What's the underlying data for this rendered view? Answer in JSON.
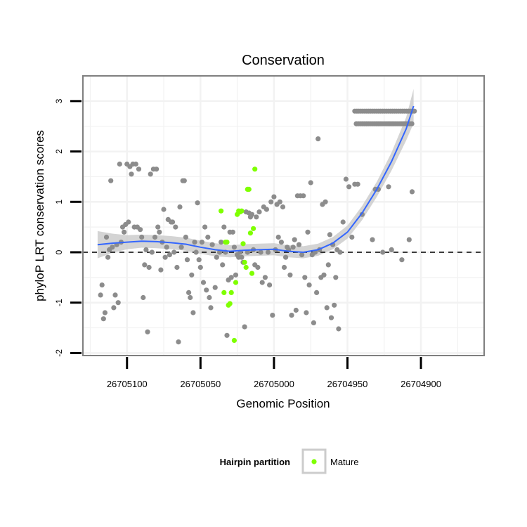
{
  "chart_data": {
    "type": "scatter",
    "title": "Conservation",
    "xlabel": "Genomic Position",
    "ylabel": "phyloP LRT conservation scores",
    "x_reversed": true,
    "xlim": [
      26705130,
      26704857
    ],
    "ylim": [
      -2.05,
      3.5
    ],
    "x_ticks": [
      26705100,
      26705050,
      26705000,
      26704950,
      26704900
    ],
    "x_tick_labels": [
      "26705100",
      "26705050",
      "26705000",
      "26704950",
      "26704900"
    ],
    "y_ticks": [
      -2,
      -1,
      0,
      1,
      2,
      3
    ],
    "y_tick_labels": [
      "-2",
      "-1",
      "0",
      "1",
      "2",
      "3"
    ],
    "grid": true,
    "reference_line": {
      "y": 0,
      "style": "dashed"
    },
    "legend": {
      "title": "Hairpin partition",
      "placement": "bottom",
      "entries": [
        {
          "label": "Mature",
          "color": "#7FFF00"
        }
      ]
    },
    "colors": {
      "other": "#8c8c8c",
      "mature": "#7FFF00",
      "smooth": "#3366FF",
      "band": "#cccccc",
      "panel_border": "#7f7f7f",
      "grid": "#f2f2f2"
    },
    "series": [
      {
        "group": "other",
        "points": [
          [
            26705118,
            -0.85
          ],
          [
            26705117,
            -0.65
          ],
          [
            26705116,
            -1.32
          ],
          [
            26705115,
            -1.2
          ],
          [
            26705114,
            0.3
          ],
          [
            26705113,
            -0.1
          ],
          [
            26705112,
            0.05
          ],
          [
            26705111,
            1.42
          ],
          [
            26705110,
            0.1
          ],
          [
            26705109,
            -1.1
          ],
          [
            26705108,
            -0.85
          ],
          [
            26705107,
            0.15
          ],
          [
            26705106,
            -1.0
          ],
          [
            26705105,
            1.75
          ],
          [
            26705104,
            0.2
          ],
          [
            26705103,
            0.5
          ],
          [
            26705102,
            0.4
          ],
          [
            26705101,
            0.55
          ],
          [
            26705100,
            1.75
          ],
          [
            26705099,
            0.6
          ],
          [
            26705098,
            1.7
          ],
          [
            26705097,
            1.55
          ],
          [
            26705096,
            1.75
          ],
          [
            26705095,
            0.5
          ],
          [
            26705094,
            1.75
          ],
          [
            26705093,
            0.5
          ],
          [
            26705092,
            1.65
          ],
          [
            26705091,
            0.45
          ],
          [
            26705090,
            0.3
          ],
          [
            26705089,
            -0.9
          ],
          [
            26705088,
            -0.25
          ],
          [
            26705087,
            0.05
          ],
          [
            26705086,
            -1.58
          ],
          [
            26705085,
            -0.3
          ],
          [
            26705084,
            1.55
          ],
          [
            26705083,
            0.0
          ],
          [
            26705082,
            1.65
          ],
          [
            26705081,
            0.3
          ],
          [
            26705080,
            1.65
          ],
          [
            26705079,
            0.5
          ],
          [
            26705078,
            0.4
          ],
          [
            26705077,
            -0.35
          ],
          [
            26705076,
            0.2
          ],
          [
            26705075,
            0.85
          ],
          [
            26705074,
            -0.1
          ],
          [
            26705073,
            0.1
          ],
          [
            26705072,
            0.65
          ],
          [
            26705071,
            -0.05
          ],
          [
            26705070,
            0.6
          ],
          [
            26705069,
            0.6
          ],
          [
            26705068,
            0.0
          ],
          [
            26705067,
            0.5
          ],
          [
            26705066,
            -0.3
          ],
          [
            26705065,
            -1.78
          ],
          [
            26705064,
            0.9
          ],
          [
            26705063,
            0.1
          ],
          [
            26705062,
            1.42
          ],
          [
            26705061,
            1.42
          ],
          [
            26705060,
            0.3
          ],
          [
            26705059,
            -0.15
          ],
          [
            26705058,
            -0.8
          ],
          [
            26705057,
            -0.9
          ],
          [
            26705056,
            -0.45
          ],
          [
            26705055,
            -1.2
          ],
          [
            26705054,
            0.2
          ],
          [
            26705053,
            0.0
          ],
          [
            26705052,
            0.98
          ],
          [
            26705051,
            -0.15
          ],
          [
            26705050,
            -0.3
          ],
          [
            26705049,
            0.2
          ],
          [
            26705048,
            -0.6
          ],
          [
            26705047,
            0.5
          ],
          [
            26705046,
            -0.75
          ],
          [
            26705045,
            0.3
          ],
          [
            26705044,
            -0.9
          ],
          [
            26705043,
            -1.1
          ],
          [
            26705042,
            0.15
          ],
          [
            26705040,
            -0.7
          ],
          [
            26705039,
            -0.1
          ],
          [
            26705037,
            0.0
          ],
          [
            26705036,
            0.2
          ],
          [
            26705035,
            -0.25
          ],
          [
            26705034,
            0.5
          ],
          [
            26705033,
            0.0
          ],
          [
            26705032,
            -1.65
          ],
          [
            26705031,
            -0.55
          ],
          [
            26705030,
            0.4
          ],
          [
            26705029,
            -0.5
          ],
          [
            26705028,
            0.4
          ],
          [
            26705027,
            0.1
          ],
          [
            26705026,
            -0.45
          ],
          [
            26705025,
            -0.05
          ],
          [
            26705024,
            -0.1
          ],
          [
            26705023,
            0.0
          ],
          [
            26705022,
            -0.1
          ],
          [
            26705021,
            -0.2
          ],
          [
            26705020,
            -1.48
          ],
          [
            26705019,
            0.8
          ],
          [
            26705018,
            0.0
          ],
          [
            26705017,
            0.78
          ],
          [
            26705016,
            0.7
          ],
          [
            26705015,
            0.75
          ],
          [
            26705014,
            0.05
          ],
          [
            26705013,
            -0.25
          ],
          [
            26705012,
            0.7
          ],
          [
            26705011,
            -0.3
          ],
          [
            26705010,
            0.8
          ],
          [
            26705009,
            0.0
          ],
          [
            26705008,
            -0.6
          ],
          [
            26705007,
            0.9
          ],
          [
            26705006,
            -0.5
          ],
          [
            26705005,
            0.85
          ],
          [
            26705004,
            0.0
          ],
          [
            26705003,
            -0.65
          ],
          [
            26705002,
            1.0
          ],
          [
            26705001,
            -1.25
          ],
          [
            26705000,
            1.1
          ],
          [
            26704999,
            0.05
          ],
          [
            26704998,
            0.95
          ],
          [
            26704997,
            0.3
          ],
          [
            26704996,
            1.0
          ],
          [
            26704995,
            0.2
          ],
          [
            26704994,
            0.9
          ],
          [
            26704993,
            -0.3
          ],
          [
            26704992,
            -0.1
          ],
          [
            26704991,
            0.1
          ],
          [
            26704990,
            0.05
          ],
          [
            26704989,
            -0.45
          ],
          [
            26704988,
            -1.25
          ],
          [
            26704987,
            0.1
          ],
          [
            26704986,
            0.25
          ],
          [
            26704985,
            -1.15
          ],
          [
            26704984,
            1.12
          ],
          [
            26704983,
            0.15
          ],
          [
            26704982,
            1.12
          ],
          [
            26704981,
            -0.05
          ],
          [
            26704980,
            1.12
          ],
          [
            26704979,
            -0.5
          ],
          [
            26704978,
            -1.2
          ],
          [
            26704977,
            0.4
          ],
          [
            26704976,
            -0.65
          ],
          [
            26704975,
            1.38
          ],
          [
            26704974,
            -0.05
          ],
          [
            26704973,
            -1.4
          ],
          [
            26704972,
            0.0
          ],
          [
            26704971,
            -0.8
          ],
          [
            26704970,
            2.25
          ],
          [
            26704969,
            0.05
          ],
          [
            26704968,
            -0.5
          ],
          [
            26704967,
            0.95
          ],
          [
            26704966,
            -0.45
          ],
          [
            26704965,
            1.0
          ],
          [
            26704964,
            -1.1
          ],
          [
            26704963,
            -0.25
          ],
          [
            26704962,
            0.35
          ],
          [
            26704961,
            -1.3
          ],
          [
            26704960,
            0.15
          ],
          [
            26704959,
            -1.05
          ],
          [
            26704958,
            -0.5
          ],
          [
            26704957,
            0.05
          ],
          [
            26704956,
            -1.52
          ],
          [
            26704955,
            0.0
          ],
          [
            26704953,
            0.6
          ],
          [
            26704951,
            1.45
          ],
          [
            26704949,
            1.3
          ],
          [
            26704947,
            0.3
          ],
          [
            26704945,
            1.35
          ],
          [
            26704943,
            1.35
          ],
          [
            26704940,
            0.75
          ],
          [
            26704933,
            0.25
          ],
          [
            26704931,
            1.25
          ],
          [
            26704929,
            1.25
          ],
          [
            26704926,
            0.0
          ],
          [
            26704922,
            1.3
          ],
          [
            26704920,
            0.05
          ],
          [
            26704913,
            -0.15
          ],
          [
            26704908,
            0.25
          ],
          [
            26704906,
            1.2
          ]
        ],
        "rows": [
          {
            "y": 2.8,
            "x_from": 26704945,
            "x_to": 26704904,
            "step": 1.35
          },
          {
            "y": 2.55,
            "x_from": 26704944,
            "x_to": 26704905,
            "step": 1.35
          }
        ]
      },
      {
        "group": "mature",
        "name": "Mature",
        "points": [
          [
            26705036,
            0.82
          ],
          [
            26705034,
            -0.8
          ],
          [
            26705033,
            0.2
          ],
          [
            26705032,
            0.2
          ],
          [
            26705031,
            -1.05
          ],
          [
            26705030,
            -1.02
          ],
          [
            26705029,
            -0.8
          ],
          [
            26705027,
            -1.75
          ],
          [
            26705026,
            -0.6
          ],
          [
            26705025,
            0.75
          ],
          [
            26705024,
            0.82
          ],
          [
            26705023,
            0.8
          ],
          [
            26705022,
            0.82
          ],
          [
            26705021,
            0.17
          ],
          [
            26705020,
            -0.2
          ],
          [
            26705019,
            -0.3
          ],
          [
            26705018,
            1.25
          ],
          [
            26705017,
            1.25
          ],
          [
            26705016,
            0.38
          ],
          [
            26705015,
            -0.42
          ],
          [
            26705014,
            0.47
          ],
          [
            26705013,
            1.65
          ]
        ]
      }
    ],
    "smooth": {
      "x": [
        26705120,
        26705110,
        26705100,
        26705090,
        26705080,
        26705070,
        26705060,
        26705050,
        26705040,
        26705030,
        26705020,
        26705010,
        26705000,
        26704990,
        26704980,
        26704970,
        26704960,
        26704950,
        26704940,
        26704930,
        26704920,
        26704910,
        26704905
      ],
      "y": [
        0.15,
        0.18,
        0.2,
        0.22,
        0.21,
        0.19,
        0.16,
        0.1,
        0.05,
        0.02,
        0.04,
        0.05,
        0.06,
        0.02,
        0.0,
        0.05,
        0.18,
        0.4,
        0.78,
        1.25,
        1.8,
        2.45,
        2.9
      ],
      "se": [
        0.27,
        0.19,
        0.14,
        0.13,
        0.13,
        0.13,
        0.13,
        0.13,
        0.13,
        0.12,
        0.12,
        0.12,
        0.12,
        0.12,
        0.12,
        0.12,
        0.12,
        0.13,
        0.14,
        0.15,
        0.18,
        0.23,
        0.34
      ]
    }
  }
}
